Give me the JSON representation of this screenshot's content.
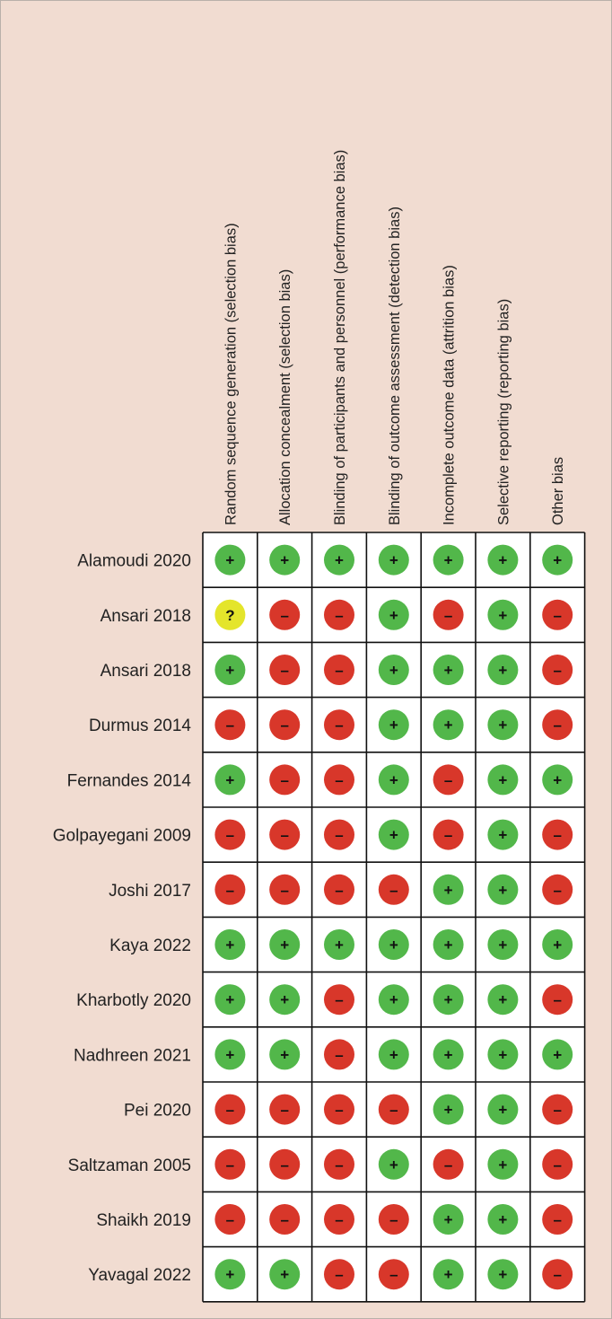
{
  "chart_data": {
    "type": "table",
    "title": "",
    "domains": [
      "Random sequence generation (selection bias)",
      "Allocation concealment (selection bias)",
      "Blinding of participants and personnel (performance bias)",
      "Blinding of outcome assessment (detection bias)",
      "Incomplete outcome data (attrition bias)",
      "Selective reporting (reporting bias)",
      "Other bias"
    ],
    "studies": [
      {
        "name": "Alamoudi 2020",
        "ratings": [
          "+",
          "+",
          "+",
          "+",
          "+",
          "+",
          "+"
        ]
      },
      {
        "name": "Ansari 2018",
        "ratings": [
          "?",
          "-",
          "-",
          "+",
          "-",
          "+",
          "-"
        ]
      },
      {
        "name": "Ansari 2018",
        "ratings": [
          "+",
          "-",
          "-",
          "+",
          "+",
          "+",
          "-"
        ]
      },
      {
        "name": "Durmus 2014",
        "ratings": [
          "-",
          "-",
          "-",
          "+",
          "+",
          "+",
          "-"
        ]
      },
      {
        "name": "Fernandes 2014",
        "ratings": [
          "+",
          "-",
          "-",
          "+",
          "-",
          "+",
          "+"
        ]
      },
      {
        "name": "Golpayegani 2009",
        "ratings": [
          "-",
          "-",
          "-",
          "+",
          "-",
          "+",
          "-"
        ]
      },
      {
        "name": "Joshi 2017",
        "ratings": [
          "-",
          "-",
          "-",
          "-",
          "+",
          "+",
          "-"
        ]
      },
      {
        "name": "Kaya 2022",
        "ratings": [
          "+",
          "+",
          "+",
          "+",
          "+",
          "+",
          "+"
        ]
      },
      {
        "name": "Kharbotly 2020",
        "ratings": [
          "+",
          "+",
          "-",
          "+",
          "+",
          "+",
          "-"
        ]
      },
      {
        "name": "Nadhreen 2021",
        "ratings": [
          "+",
          "+",
          "-",
          "+",
          "+",
          "+",
          "+"
        ]
      },
      {
        "name": "Pei 2020",
        "ratings": [
          "-",
          "-",
          "-",
          "-",
          "+",
          "+",
          "-"
        ]
      },
      {
        "name": "Saltzaman 2005",
        "ratings": [
          "-",
          "-",
          "-",
          "+",
          "-",
          "+",
          "-"
        ]
      },
      {
        "name": "Shaikh 2019",
        "ratings": [
          "-",
          "-",
          "-",
          "-",
          "+",
          "+",
          "-"
        ]
      },
      {
        "name": "Yavagal 2022",
        "ratings": [
          "+",
          "+",
          "-",
          "-",
          "+",
          "+",
          "-"
        ]
      }
    ],
    "legend": {
      "+": {
        "meaning": "",
        "color": "#52b74a"
      },
      "-": {
        "meaning": "",
        "color": "#d8372a"
      },
      "?": {
        "meaning": "",
        "color": "#e4e52b"
      }
    }
  }
}
